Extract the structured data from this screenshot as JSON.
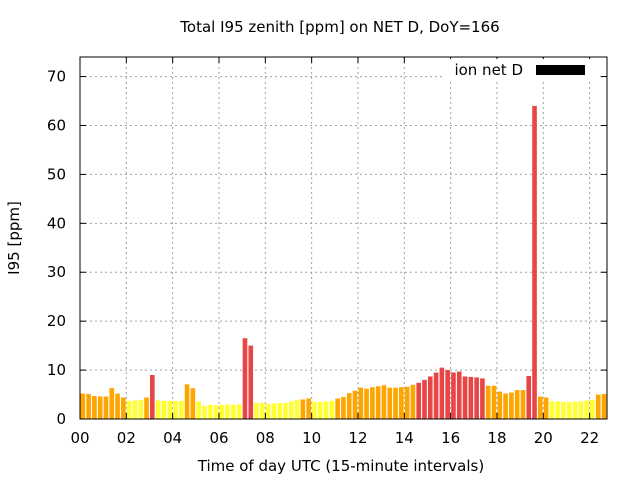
{
  "chart_data": {
    "type": "bar",
    "title": "Total I95 zenith [ppm] on NET D, DoY=166",
    "xlabel": "Time of day UTC (15-minute intervals)",
    "ylabel": "I95 [ppm]",
    "xlim": [
      0,
      22.75
    ],
    "ylim": [
      0,
      74
    ],
    "xticks": [
      "00",
      "02",
      "04",
      "06",
      "08",
      "10",
      "12",
      "14",
      "16",
      "18",
      "20",
      "22"
    ],
    "yticks": [
      "0",
      "10",
      "20",
      "30",
      "40",
      "50",
      "60",
      "70"
    ],
    "grid": true,
    "legend": {
      "position": "top-right",
      "entries": [
        {
          "label": "ion net D",
          "color": "#000000"
        }
      ]
    },
    "bin_hours": 0.25,
    "colors": {
      "low": "#ffff33",
      "mid": "#ffa500",
      "high": "#e84646"
    },
    "series": [
      {
        "values": [
          5.2,
          5.1,
          4.7,
          4.6,
          4.6,
          6.3,
          5.2,
          4.4,
          3.7,
          3.8,
          3.9,
          4.4,
          9.0,
          3.8,
          3.7,
          3.7,
          3.7,
          3.7,
          7.1,
          6.3,
          3.6,
          2.7,
          2.9,
          2.8,
          2.9,
          3.0,
          2.9,
          3.0,
          16.5,
          15.0,
          3.3,
          3.3,
          3.1,
          3.2,
          3.3,
          3.3,
          3.6,
          3.9,
          4.0,
          4.2,
          3.5,
          3.5,
          3.6,
          3.7,
          4.2,
          4.5,
          5.3,
          5.8,
          6.4,
          6.2,
          6.5,
          6.7,
          6.9,
          6.4,
          6.4,
          6.5,
          6.6,
          7.0,
          7.4,
          8.0,
          8.7,
          9.5,
          10.5,
          10.0,
          9.5,
          9.7,
          8.7,
          8.6,
          8.5,
          8.3,
          6.8,
          6.8,
          5.6,
          5.2,
          5.4,
          5.9,
          5.9,
          8.8,
          64.0,
          4.6,
          4.4,
          3.6,
          3.6,
          3.5,
          3.5,
          3.6,
          3.6,
          3.8,
          3.9,
          5.0,
          5.1
        ],
        "levels": [
          "mid",
          "mid",
          "mid",
          "mid",
          "mid",
          "mid",
          "mid",
          "mid",
          "low",
          "low",
          "low",
          "mid",
          "high",
          "low",
          "low",
          "low",
          "low",
          "low",
          "mid",
          "mid",
          "low",
          "low",
          "low",
          "low",
          "low",
          "low",
          "low",
          "low",
          "high",
          "high",
          "low",
          "low",
          "low",
          "low",
          "low",
          "low",
          "low",
          "low",
          "mid",
          "mid",
          "low",
          "low",
          "low",
          "low",
          "mid",
          "mid",
          "mid",
          "mid",
          "mid",
          "mid",
          "mid",
          "mid",
          "mid",
          "mid",
          "mid",
          "mid",
          "mid",
          "mid",
          "high",
          "high",
          "high",
          "high",
          "high",
          "high",
          "high",
          "high",
          "high",
          "high",
          "high",
          "high",
          "mid",
          "mid",
          "mid",
          "mid",
          "mid",
          "mid",
          "mid",
          "high",
          "high",
          "mid",
          "mid",
          "low",
          "low",
          "low",
          "low",
          "low",
          "low",
          "low",
          "low",
          "mid",
          "mid"
        ]
      }
    ]
  }
}
